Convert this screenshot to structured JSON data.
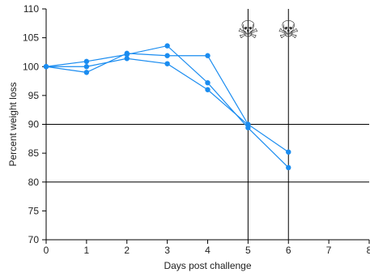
{
  "chart_data": {
    "type": "line",
    "xlabel": "Days post challenge",
    "ylabel": "Percent weight loss",
    "xlim": [
      0,
      8
    ],
    "ylim": [
      70,
      110
    ],
    "xticks": [
      0,
      1,
      2,
      3,
      4,
      5,
      6,
      7,
      8
    ],
    "yticks": [
      70,
      75,
      80,
      85,
      90,
      95,
      100,
      105,
      110
    ],
    "grid": false,
    "reference_lines": {
      "horizontal": [
        90,
        80
      ],
      "vertical": [
        5,
        6
      ]
    },
    "death_markers": [
      {
        "x": 5,
        "icon": "skull-and-crossbones-icon",
        "glyph": "☠"
      },
      {
        "x": 6,
        "icon": "skull-and-crossbones-icon",
        "glyph": "☠"
      }
    ],
    "series_color": "#1a8cf0",
    "series": [
      {
        "x": [
          0,
          1,
          2,
          3,
          4,
          5,
          6
        ],
        "values": [
          100,
          100.9,
          102.1,
          103.6,
          97.2,
          89.4,
          82.5
        ]
      },
      {
        "x": [
          0,
          1,
          2,
          3,
          4,
          5,
          6
        ],
        "values": [
          100,
          99.0,
          102.3,
          101.9,
          101.9,
          90.0,
          85.2
        ]
      },
      {
        "x": [
          0,
          1,
          2,
          3,
          4,
          5
        ],
        "values": [
          100,
          100.0,
          101.4,
          100.5,
          96.0,
          89.9
        ]
      }
    ]
  }
}
